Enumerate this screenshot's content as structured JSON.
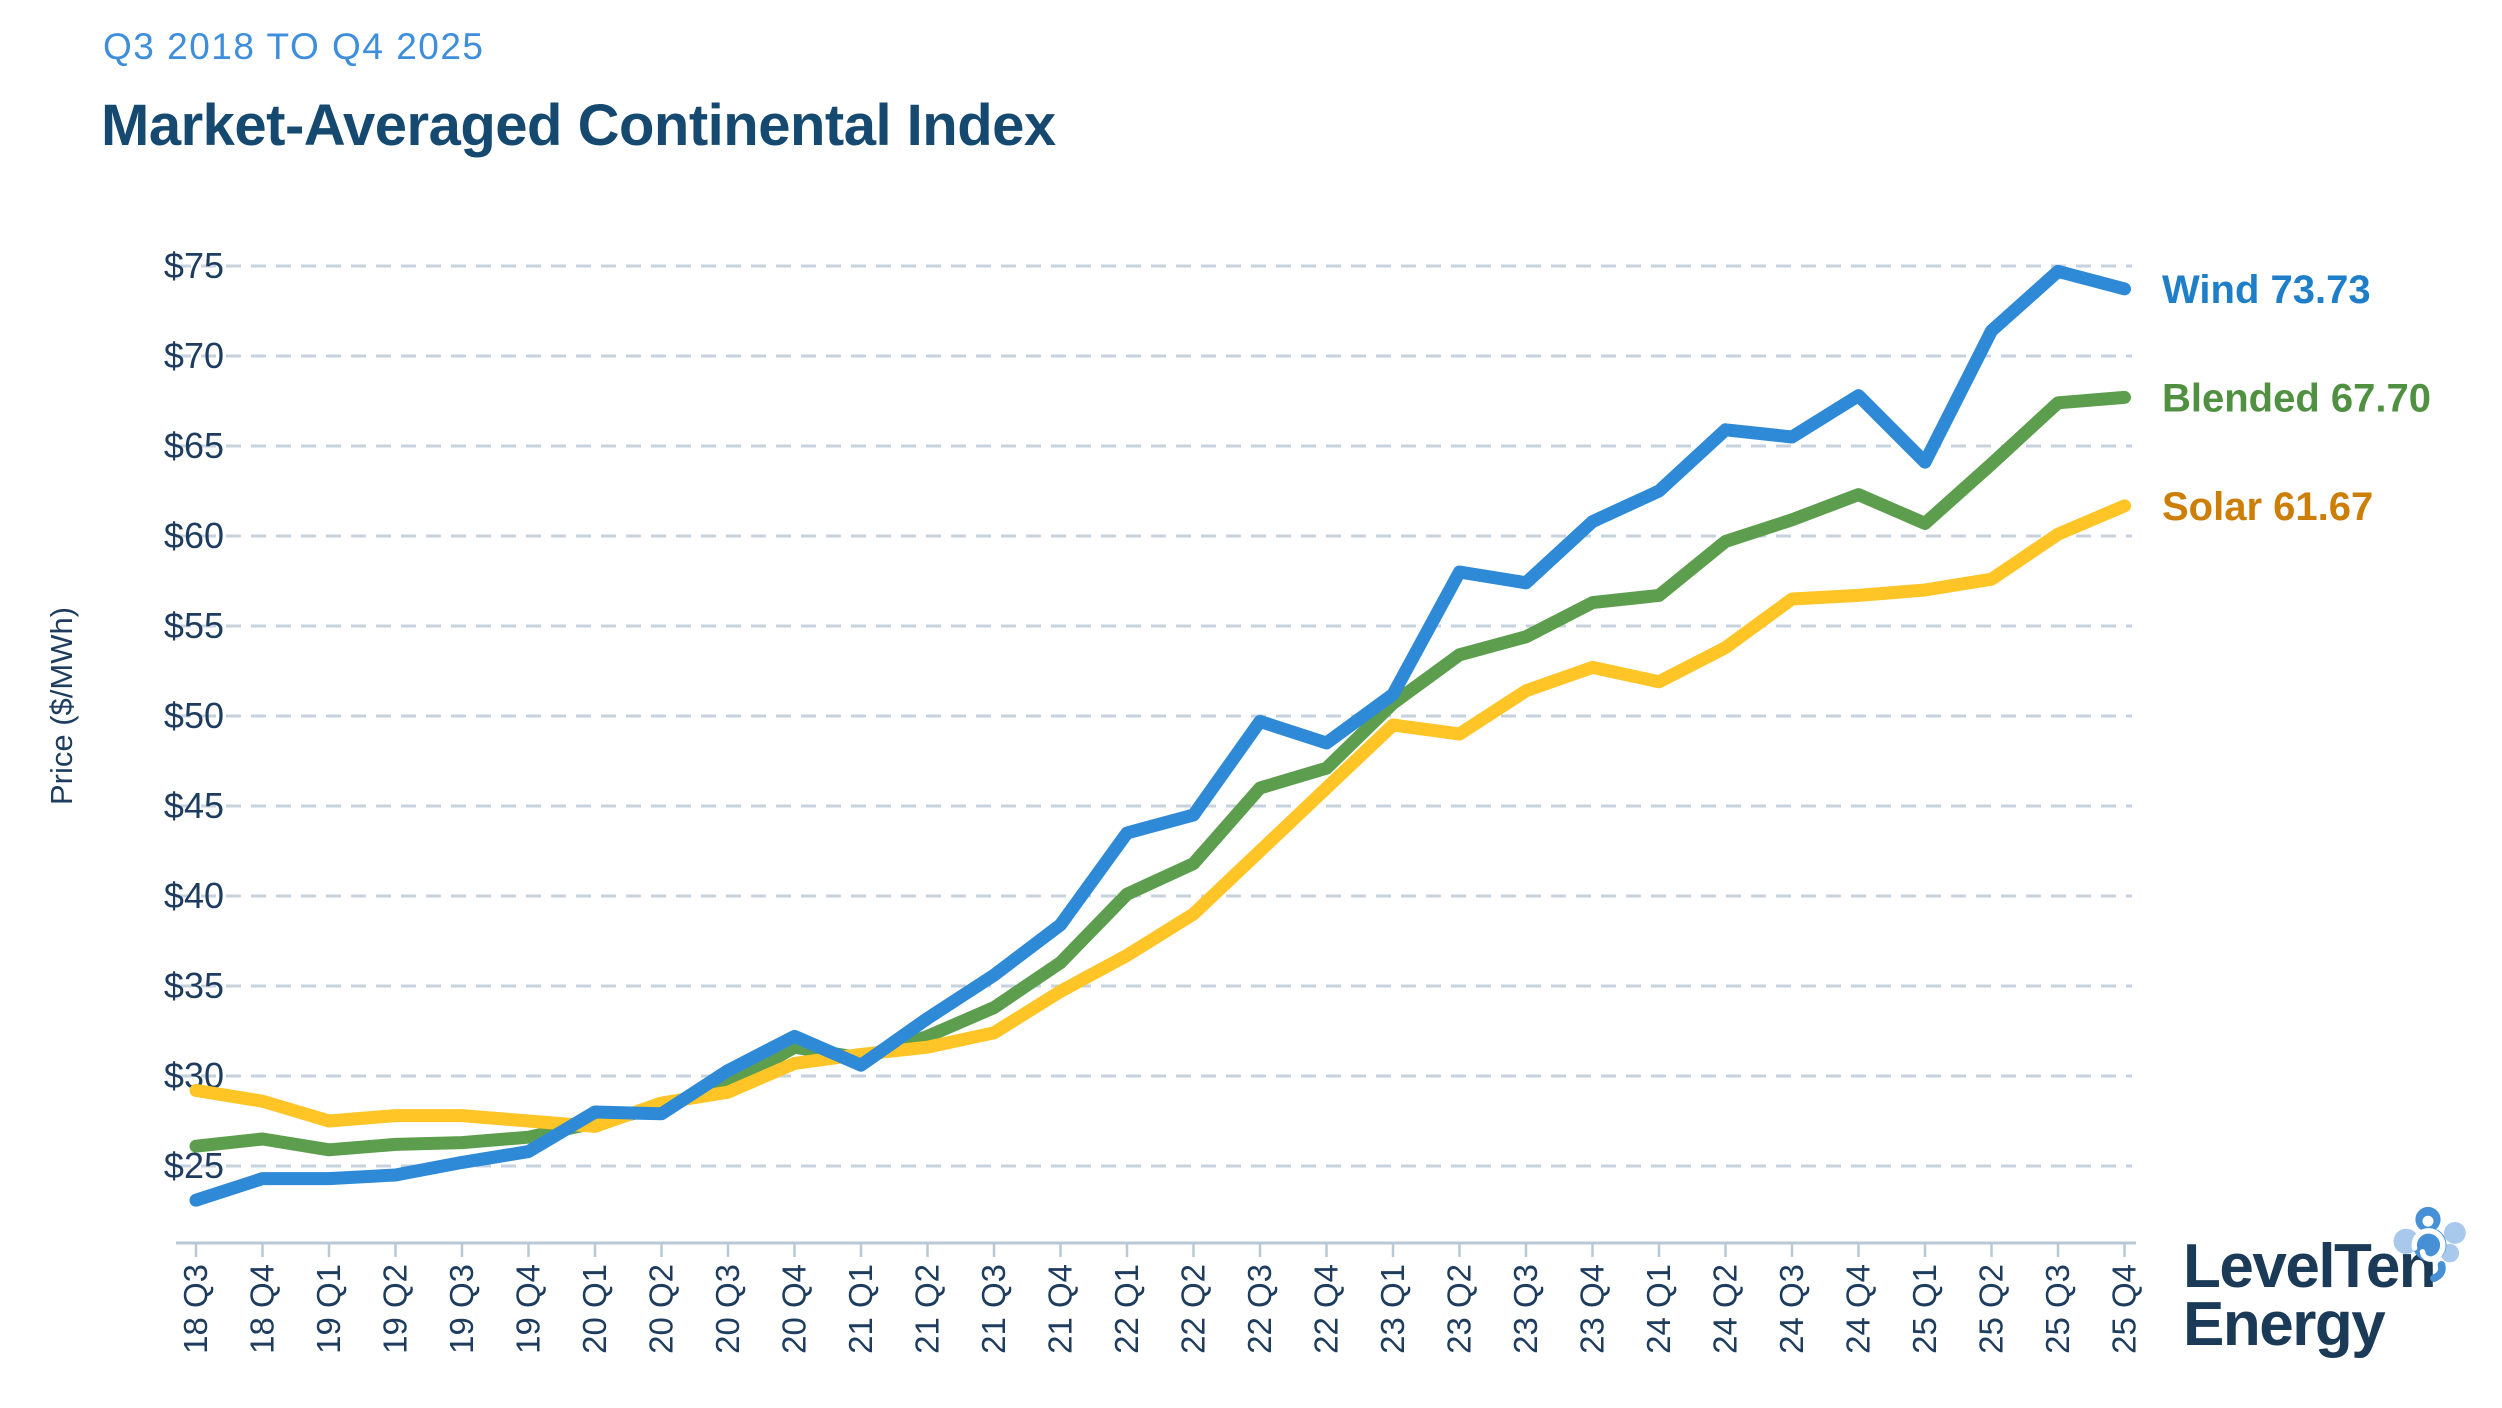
{
  "header": {
    "subtitle": "Q3 2018 TO Q4 2025",
    "title": "Market-Averaged Continental Index"
  },
  "logo": {
    "line1": "LevelTen",
    "line2": "Energy"
  },
  "colors": {
    "subtitle": "#3E8EDC",
    "title": "#15496F",
    "axis_text": "#1D3C5E",
    "gridline": "#C6D2DE",
    "axis_line": "#B9C8D5",
    "logo_navy": "#1B3A57",
    "logo_blue_medium": "#4790D6",
    "logo_blue_light": "#A9C9EC"
  },
  "chart_data": {
    "type": "line",
    "title": "Market-Averaged Continental Index",
    "subtitle": "Q3 2018 TO Q4 2025",
    "xlabel": "",
    "ylabel": "Price ($/MWh)",
    "ylim": [
      25,
      75
    ],
    "ytick_step": 5,
    "ytick_prefix": "$",
    "grid": "horizontal-dashed",
    "legend_position": "right-end-labels",
    "categories": [
      "18 Q3",
      "18 Q4",
      "19 Q1",
      "19 Q2",
      "19 Q3",
      "19 Q4",
      "20 Q1",
      "20 Q2",
      "20 Q3",
      "20 Q4",
      "21 Q1",
      "21 Q2",
      "21 Q3",
      "21 Q4",
      "22 Q1",
      "22 Q2",
      "22 Q3",
      "22 Q4",
      "23 Q1",
      "23 Q2",
      "23 Q3",
      "23 Q4",
      "24 Q1",
      "24 Q2",
      "24 Q3",
      "24 Q4",
      "25 Q1",
      "25 Q2",
      "25 Q3",
      "25 Q4"
    ],
    "series": [
      {
        "name": "Blended",
        "end_label": "Blended 67.70",
        "final_value": 67.7,
        "color": "#5C9E4D",
        "label_color": "#4F9140",
        "values": [
          26.1,
          26.5,
          25.9,
          26.2,
          26.3,
          26.6,
          27.4,
          28.3,
          29.5,
          31.6,
          31.0,
          32.2,
          33.8,
          36.3,
          40.1,
          41.8,
          46.0,
          47.1,
          50.7,
          53.4,
          54.4,
          56.3,
          56.7,
          59.7,
          60.9,
          62.3,
          60.7,
          64.0,
          67.4,
          67.7
        ]
      },
      {
        "name": "Solar",
        "end_label": "Solar 61.67",
        "final_value": 61.67,
        "color": "#FFC425",
        "label_color": "#CC7E06",
        "values": [
          29.2,
          28.6,
          27.5,
          27.8,
          27.8,
          27.5,
          27.2,
          28.5,
          29.1,
          30.7,
          31.2,
          31.6,
          32.4,
          34.7,
          36.7,
          39.0,
          42.5,
          46.0,
          49.5,
          49.0,
          51.4,
          52.7,
          51.9,
          53.8,
          56.5,
          56.7,
          57.0,
          57.6,
          60.1,
          61.67
        ]
      },
      {
        "name": "Wind",
        "end_label": "Wind  73.73",
        "final_value": 73.73,
        "color": "#2E8AD7",
        "label_color": "#1E7EC8",
        "values": [
          23.1,
          24.3,
          24.3,
          24.5,
          25.2,
          25.8,
          28.0,
          27.9,
          30.3,
          32.2,
          30.6,
          33.2,
          35.6,
          38.4,
          43.5,
          44.5,
          49.7,
          48.5,
          51.2,
          58.0,
          57.4,
          60.8,
          62.5,
          65.9,
          65.5,
          67.8,
          64.1,
          71.4,
          74.7,
          73.73
        ]
      }
    ]
  }
}
